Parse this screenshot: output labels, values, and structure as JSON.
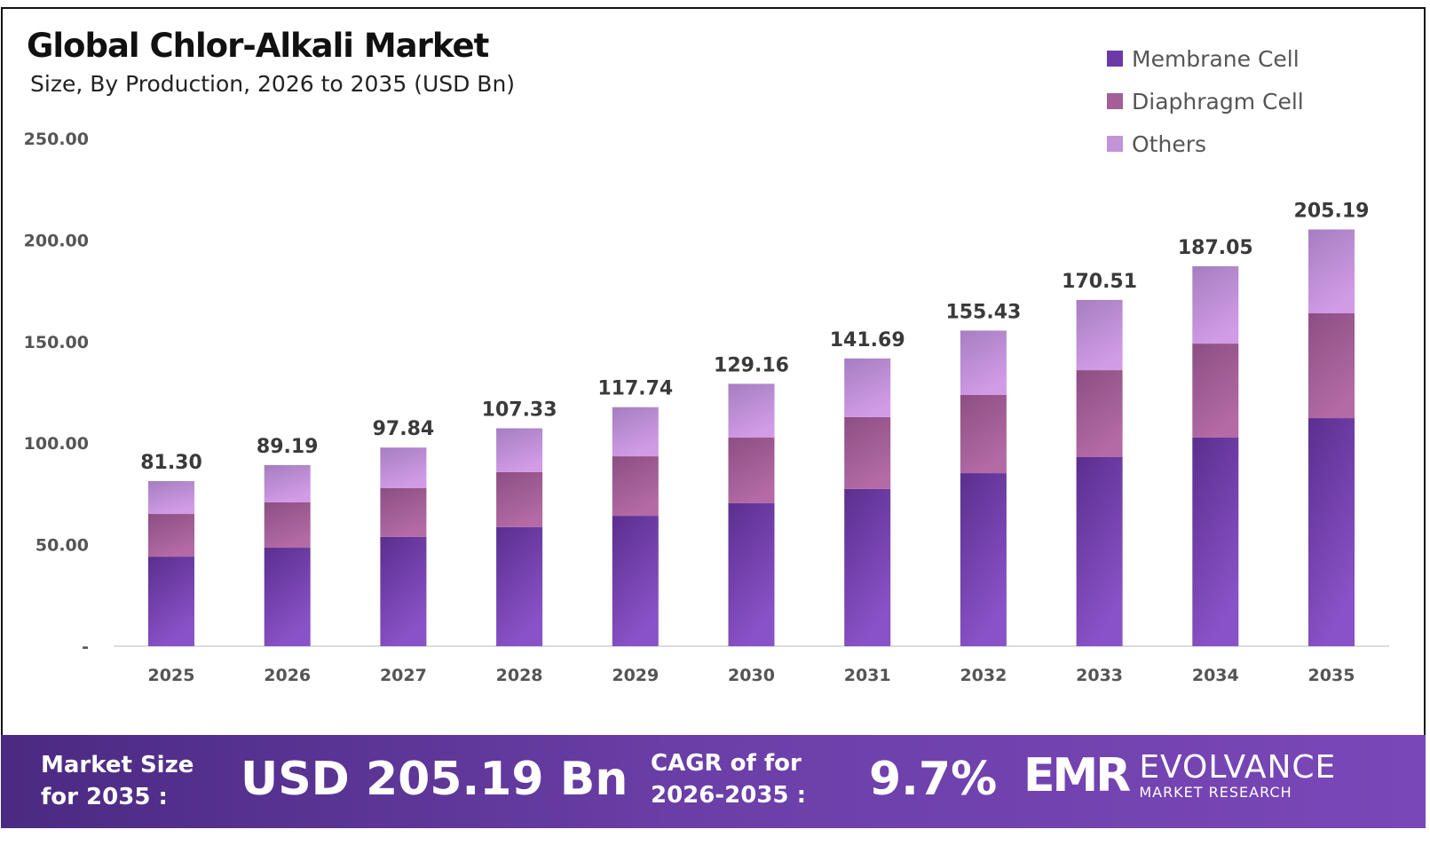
{
  "chart_data": {
    "type": "bar",
    "stacked": true,
    "title": "Global Chlor-Alkali Market",
    "subtitle": "Size, By Production, 2026 to 2035 (USD Bn)",
    "categories": [
      "2025",
      "2026",
      "2027",
      "2028",
      "2029",
      "2030",
      "2031",
      "2032",
      "2033",
      "2034",
      "2035"
    ],
    "series": [
      {
        "name": "Membrane Cell",
        "color": "#6a3aa6",
        "values": [
          44.1,
          48.5,
          53.8,
          58.6,
          64.2,
          70.4,
          77.4,
          85.2,
          93.1,
          102.7,
          112.3
        ]
      },
      {
        "name": "Diaphragm Cell",
        "color": "#a35f96",
        "values": [
          21.0,
          22.3,
          24.0,
          27.1,
          29.3,
          32.3,
          35.4,
          38.5,
          42.8,
          46.3,
          51.6
        ]
      },
      {
        "name": "Others",
        "color": "#c393d8",
        "values": [
          16.2,
          18.4,
          20.0,
          21.6,
          24.2,
          26.5,
          28.9,
          31.7,
          34.6,
          38.1,
          41.3
        ]
      }
    ],
    "totals": [
      "81.30",
      "89.19",
      "97.84",
      "107.33",
      "117.74",
      "129.16",
      "141.69",
      "155.43",
      "170.51",
      "187.05",
      "205.19"
    ],
    "yticks": [
      "-",
      "50.00",
      "100.00",
      "150.00",
      "200.00",
      "250.00"
    ],
    "ylim": [
      0,
      250
    ],
    "grid": false,
    "legend": "top-right",
    "xlabel": "",
    "ylabel": ""
  },
  "footer": {
    "market_size_label_1": "Market Size",
    "market_size_label_2": "for 2035 :",
    "market_size_value": "USD 205.19 Bn",
    "cagr_label_1": "CAGR of for",
    "cagr_label_2": "2026-2035 :",
    "cagr_value": "9.7%",
    "logo_mark": "EMR",
    "logo_name": "EVOLVANCE",
    "logo_sub": "MARKET RESEARCH"
  }
}
